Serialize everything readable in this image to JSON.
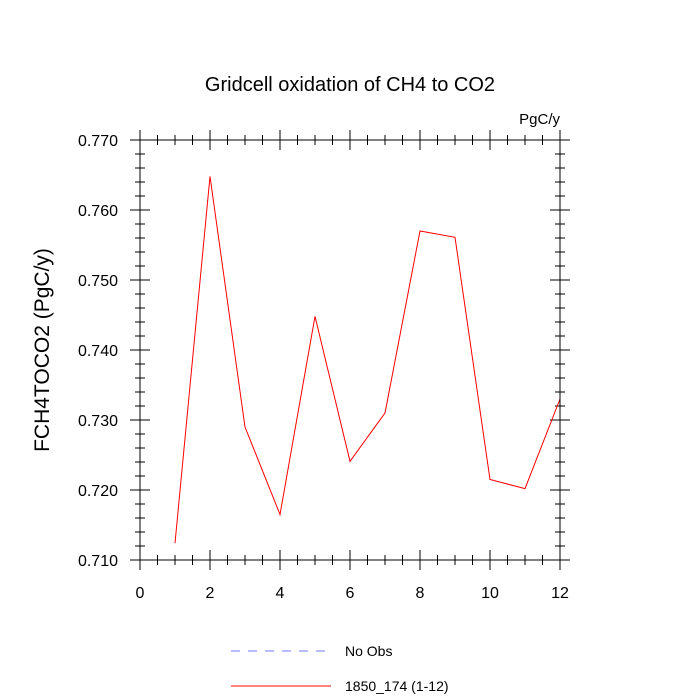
{
  "chart_data": {
    "type": "line",
    "title": "Gridcell oxidation of CH4 to CO2",
    "units": "PgC/y",
    "xlabel": "",
    "ylabel": "FCH4TOCO2  (PgC/y)",
    "xlim": [
      0,
      12
    ],
    "ylim": [
      0.71,
      0.77
    ],
    "xticks": [
      0,
      2,
      4,
      6,
      8,
      10,
      12
    ],
    "xtick_labels": [
      "0",
      "2",
      "4",
      "6",
      "8",
      "10",
      "12"
    ],
    "yticks": [
      0.71,
      0.72,
      0.73,
      0.74,
      0.75,
      0.76,
      0.77
    ],
    "ytick_labels": [
      "0.710",
      "0.720",
      "0.730",
      "0.740",
      "0.750",
      "0.760",
      "0.770"
    ],
    "series": [
      {
        "name": "1850_174 (1-12)",
        "color": "#ff0000",
        "dash": "solid",
        "x": [
          1,
          2,
          3,
          4,
          5,
          6,
          7,
          8,
          9,
          10,
          11,
          12
        ],
        "y": [
          0.7124,
          0.7648,
          0.729,
          0.7165,
          0.7448,
          0.7241,
          0.731,
          0.757,
          0.7561,
          0.7215,
          0.7202,
          0.733
        ]
      }
    ],
    "legend": {
      "placement": "bottom",
      "entries": [
        {
          "label": "No Obs",
          "color": "#7777ff",
          "dash": "dashed"
        },
        {
          "label": "1850_174 (1-12)",
          "color": "#ff0000",
          "dash": "solid"
        }
      ]
    }
  }
}
